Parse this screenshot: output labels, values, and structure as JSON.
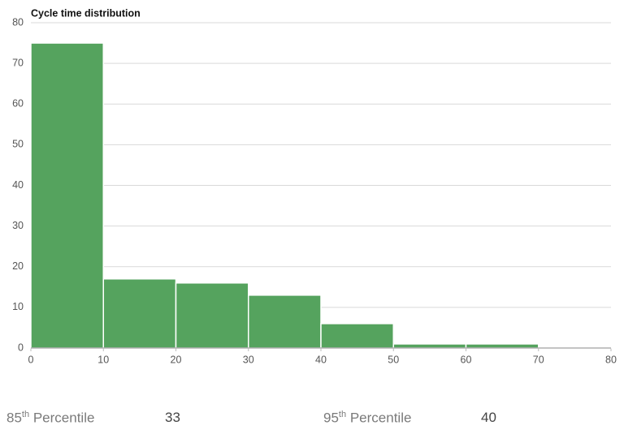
{
  "chart_data": {
    "type": "histogram",
    "title": "Cycle time distribution",
    "bins": [
      0,
      10,
      20,
      30,
      40,
      50,
      60,
      70,
      80
    ],
    "values": [
      75,
      17,
      16,
      13,
      6,
      1,
      1,
      0
    ],
    "color": "#55a35e",
    "xlim": [
      0,
      80
    ],
    "xticks": [
      0,
      10,
      20,
      30,
      40,
      50,
      60,
      70,
      80
    ],
    "ylim": [
      0,
      80
    ],
    "yticks": [
      0,
      10,
      20,
      30,
      40,
      50,
      60,
      70,
      80
    ],
    "grid": true
  },
  "stats": [
    {
      "number": "85",
      "suffix": "th",
      "label": "Percentile",
      "value": 33
    },
    {
      "number": "95",
      "suffix": "th",
      "label": "Percentile",
      "value": 40
    }
  ]
}
